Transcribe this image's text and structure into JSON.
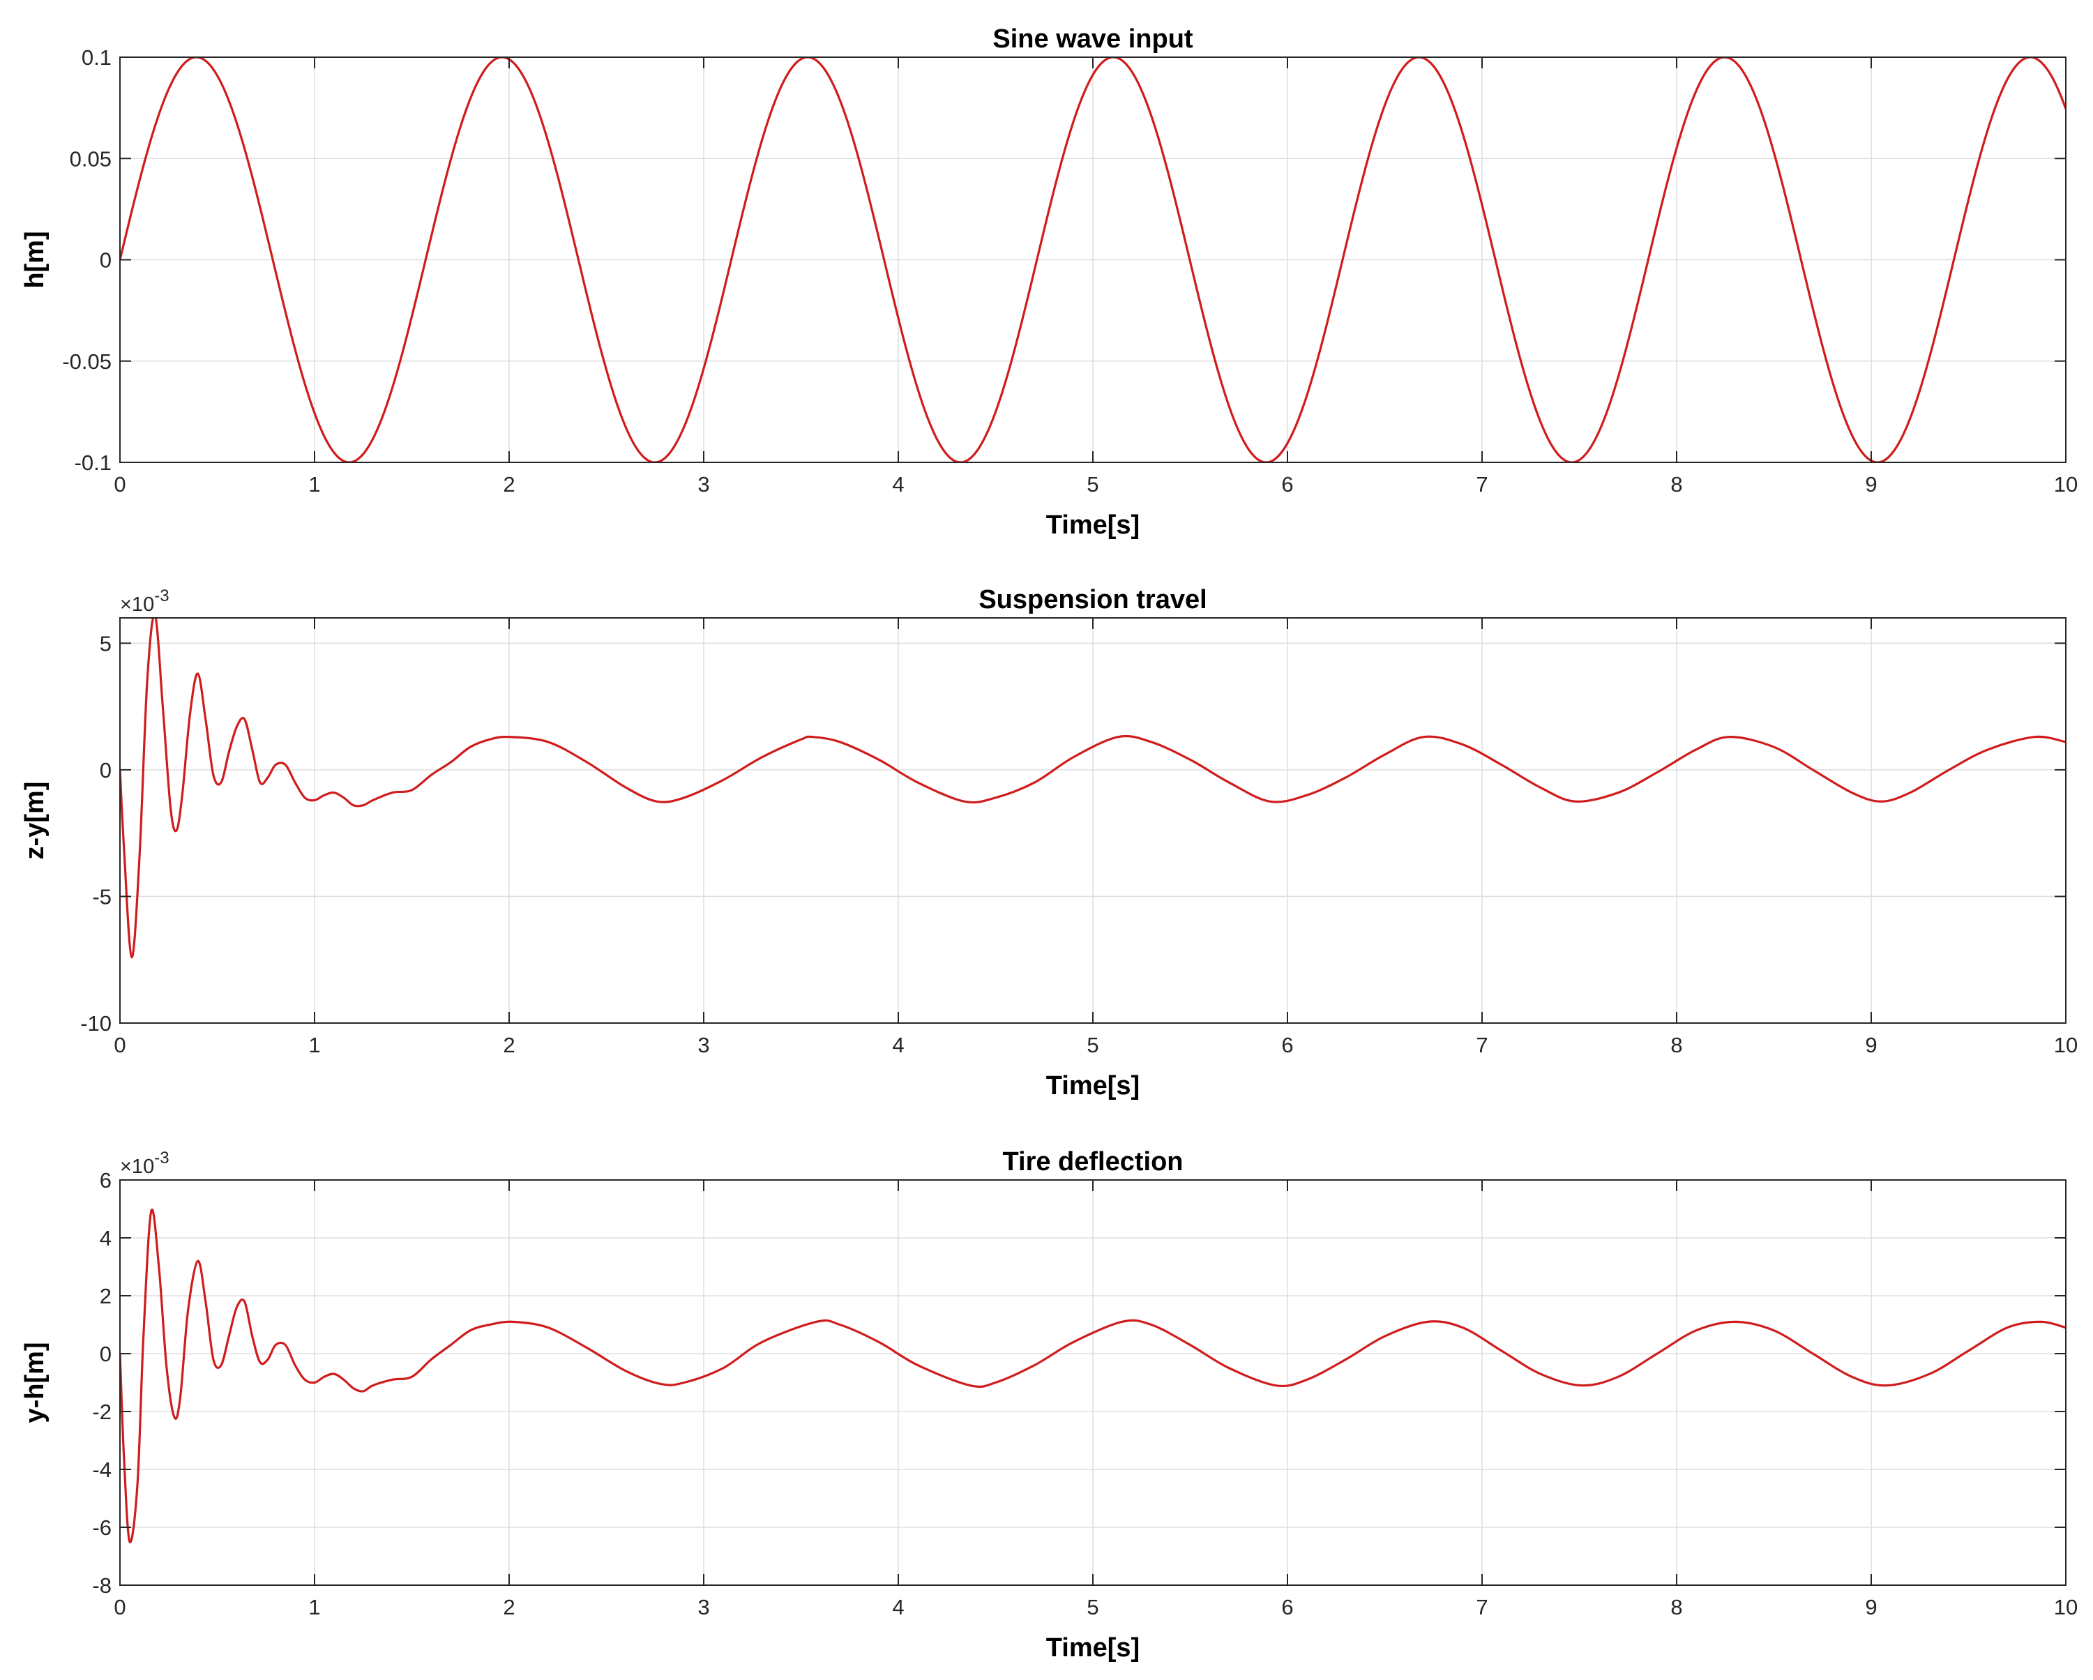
{
  "colors": {
    "series": "#d01c1c",
    "grid": "#dfdfdf",
    "axis": "#262626",
    "background": "#ffffff"
  },
  "chart_data": [
    {
      "type": "line",
      "title": "Sine wave input",
      "xlabel": "Time[s]",
      "ylabel": "h[m]",
      "exponent": "",
      "xlim": [
        0,
        10
      ],
      "ylim": [
        -0.1,
        0.1
      ],
      "xticks": [
        0,
        1,
        2,
        3,
        4,
        5,
        6,
        7,
        8,
        9,
        10
      ],
      "xticklabels": [
        "0",
        "1",
        "2",
        "3",
        "4",
        "5",
        "6",
        "7",
        "8",
        "9",
        "10"
      ],
      "yticks": [
        -0.1,
        -0.05,
        0,
        0.05,
        0.1
      ],
      "yticklabels": [
        "-0.1",
        "-0.05",
        "0",
        "0.05",
        "0.1"
      ],
      "grid": true,
      "series": [
        {
          "function": "0.1*sin(4*t)",
          "x": [
            0,
            0.39,
            1.18,
            1.96,
            2.75,
            3.53,
            4.32,
            5.11,
            5.89,
            6.68,
            7.46,
            8.25,
            9.03,
            9.82,
            10
          ],
          "y": [
            0,
            0.1,
            -0.1,
            0.1,
            -0.1,
            0.1,
            -0.1,
            0.1,
            -0.1,
            0.1,
            -0.1,
            0.1,
            -0.1,
            0.1,
            0.075
          ]
        }
      ]
    },
    {
      "type": "line",
      "title": "Suspension travel",
      "xlabel": "Time[s]",
      "ylabel": "z-y[m]",
      "exponent": "×10",
      "exponent_power": "-3",
      "xlim": [
        0,
        10
      ],
      "ylim": [
        -10,
        6
      ],
      "xticks": [
        0,
        1,
        2,
        3,
        4,
        5,
        6,
        7,
        8,
        9,
        10
      ],
      "xticklabels": [
        "0",
        "1",
        "2",
        "3",
        "4",
        "5",
        "6",
        "7",
        "8",
        "9",
        "10"
      ],
      "yticks": [
        -10,
        -5,
        0,
        5
      ],
      "yticklabels": [
        "-10",
        "-5",
        "0",
        "5"
      ],
      "grid": true,
      "series": [
        {
          "x": [
            0,
            0.02,
            0.06,
            0.1,
            0.14,
            0.18,
            0.22,
            0.26,
            0.29,
            0.32,
            0.36,
            0.4,
            0.44,
            0.48,
            0.52,
            0.56,
            0.6,
            0.64,
            0.68,
            0.72,
            0.76,
            0.8,
            0.85,
            0.9,
            0.95,
            1.0,
            1.05,
            1.1,
            1.15,
            1.2,
            1.25,
            1.3,
            1.4,
            1.5,
            1.6,
            1.7,
            1.8,
            1.9,
            2.0,
            2.2,
            2.4,
            2.6,
            2.76,
            2.9,
            3.1,
            3.3,
            3.5,
            3.56,
            3.7,
            3.9,
            4.1,
            4.34,
            4.5,
            4.7,
            4.9,
            5.13,
            5.3,
            5.5,
            5.7,
            5.91,
            6.1,
            6.3,
            6.5,
            6.7,
            6.9,
            7.1,
            7.3,
            7.48,
            7.7,
            7.9,
            8.1,
            8.27,
            8.5,
            8.7,
            8.9,
            9.05,
            9.2,
            9.4,
            9.6,
            9.84,
            10.0
          ],
          "y": [
            0,
            -3.0,
            -7.4,
            -3.5,
            3.5,
            6.1,
            2.5,
            -1.5,
            -2.4,
            -1.0,
            2.2,
            3.8,
            2.0,
            -0.2,
            -0.5,
            0.7,
            1.7,
            2.0,
            0.8,
            -0.5,
            -0.3,
            0.2,
            0.2,
            -0.5,
            -1.1,
            -1.2,
            -1.0,
            -0.9,
            -1.1,
            -1.4,
            -1.4,
            -1.2,
            -0.9,
            -0.8,
            -0.2,
            0.3,
            0.9,
            1.2,
            1.3,
            1.1,
            0.3,
            -0.7,
            -1.25,
            -1.1,
            -0.4,
            0.5,
            1.2,
            1.3,
            1.1,
            0.4,
            -0.5,
            -1.25,
            -1.1,
            -0.5,
            0.5,
            1.3,
            1.1,
            0.4,
            -0.5,
            -1.25,
            -1.0,
            -0.3,
            0.6,
            1.3,
            1.0,
            0.2,
            -0.7,
            -1.25,
            -0.9,
            -0.1,
            0.8,
            1.3,
            0.9,
            0.0,
            -0.9,
            -1.25,
            -0.9,
            0.0,
            0.8,
            1.3,
            1.1
          ]
        }
      ]
    },
    {
      "type": "line",
      "title": "Tire deflection",
      "xlabel": "Time[s]",
      "ylabel": "y-h[m]",
      "exponent": "×10",
      "exponent_power": "-3",
      "xlim": [
        0,
        10
      ],
      "ylim": [
        -8,
        6
      ],
      "xticks": [
        0,
        1,
        2,
        3,
        4,
        5,
        6,
        7,
        8,
        9,
        10
      ],
      "xticklabels": [
        "0",
        "1",
        "2",
        "3",
        "4",
        "5",
        "6",
        "7",
        "8",
        "9",
        "10"
      ],
      "yticks": [
        -8,
        -6,
        -4,
        -2,
        0,
        2,
        4,
        6
      ],
      "yticklabels": [
        "-8",
        "-6",
        "-4",
        "-2",
        "0",
        "2",
        "4",
        "6"
      ],
      "grid": true,
      "series": [
        {
          "x": [
            0,
            0.02,
            0.05,
            0.09,
            0.12,
            0.16,
            0.2,
            0.24,
            0.28,
            0.31,
            0.35,
            0.4,
            0.44,
            0.48,
            0.52,
            0.56,
            0.6,
            0.64,
            0.68,
            0.72,
            0.76,
            0.8,
            0.85,
            0.9,
            0.95,
            1.0,
            1.05,
            1.1,
            1.15,
            1.2,
            1.25,
            1.3,
            1.4,
            1.5,
            1.6,
            1.7,
            1.8,
            1.9,
            2.02,
            2.2,
            2.4,
            2.6,
            2.78,
            2.9,
            3.1,
            3.3,
            3.58,
            3.7,
            3.9,
            4.1,
            4.37,
            4.5,
            4.7,
            4.9,
            5.15,
            5.3,
            5.5,
            5.7,
            5.94,
            6.1,
            6.3,
            6.5,
            6.72,
            6.9,
            7.1,
            7.3,
            7.51,
            7.7,
            7.9,
            8.1,
            8.3,
            8.5,
            8.7,
            8.9,
            9.08,
            9.3,
            9.5,
            9.7,
            9.87,
            10.0
          ],
          "y": [
            0,
            -3.5,
            -6.5,
            -4.5,
            0.5,
            4.9,
            3.0,
            -0.5,
            -2.2,
            -1.5,
            1.5,
            3.2,
            1.8,
            -0.2,
            -0.4,
            0.6,
            1.6,
            1.8,
            0.6,
            -0.3,
            -0.2,
            0.3,
            0.3,
            -0.4,
            -0.9,
            -1.0,
            -0.8,
            -0.7,
            -0.9,
            -1.2,
            -1.3,
            -1.1,
            -0.9,
            -0.8,
            -0.2,
            0.3,
            0.8,
            1.0,
            1.1,
            0.9,
            0.2,
            -0.6,
            -1.05,
            -1.0,
            -0.5,
            0.4,
            1.1,
            1.0,
            0.4,
            -0.4,
            -1.1,
            -1.0,
            -0.4,
            0.4,
            1.1,
            1.0,
            0.3,
            -0.5,
            -1.1,
            -0.9,
            -0.2,
            0.6,
            1.1,
            0.9,
            0.1,
            -0.7,
            -1.1,
            -0.8,
            0.0,
            0.8,
            1.1,
            0.8,
            0.0,
            -0.8,
            -1.1,
            -0.7,
            0.1,
            0.9,
            1.1,
            0.9
          ]
        }
      ]
    }
  ]
}
